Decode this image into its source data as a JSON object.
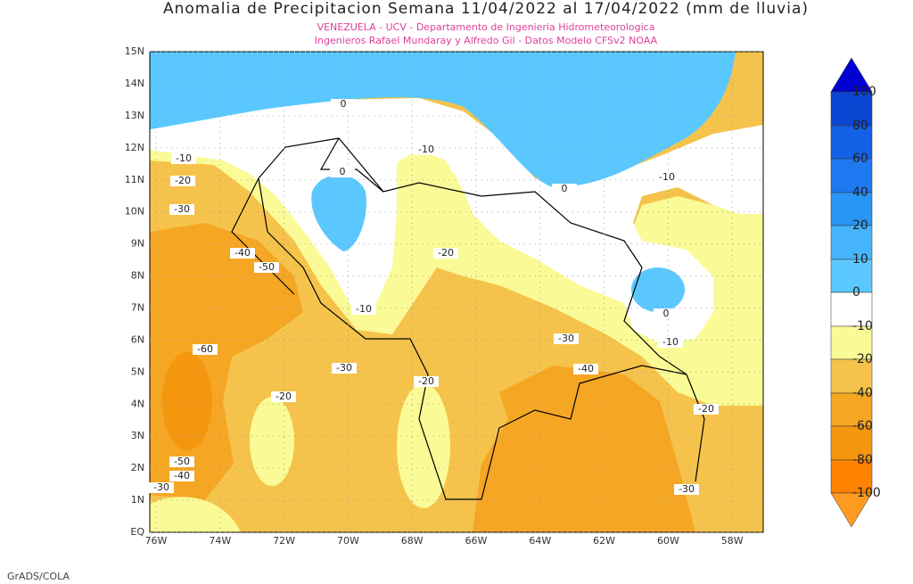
{
  "header": {
    "title": "Anomalia de Precipitacion Semana 11/04/2022 al 17/04/2022 (mm de lluvia)",
    "subtitle_lines": [
      "VENEZUELA - UCV - Departamento de Ingenieria Hidrometeorologica",
      "Ingenieros Rafael Mundaray y Alfredo Gil - Datos Modelo CFSv2 NOAA"
    ]
  },
  "map": {
    "lat_labels": [
      "EQ",
      "1N",
      "2N",
      "3N",
      "4N",
      "5N",
      "6N",
      "7N",
      "8N",
      "9N",
      "10N",
      "11N",
      "12N",
      "13N",
      "14N",
      "15N"
    ],
    "lon_labels": [
      "76W",
      "74W",
      "72W",
      "70W",
      "68W",
      "66W",
      "64W",
      "62W",
      "60W",
      "58W"
    ],
    "contour_labels": [
      "0",
      "-10",
      "-20",
      "-30",
      "-10",
      "0",
      "0",
      "-10",
      "-40",
      "-50",
      "-20",
      "-10",
      "0",
      "-10",
      "-60",
      "-30",
      "-30",
      "-40",
      "-20",
      "-20",
      "-20",
      "-50",
      "-40",
      "-30",
      "-30"
    ]
  },
  "colorbar": {
    "labels": [
      "100",
      "80",
      "60",
      "40",
      "20",
      "10",
      "0",
      "-10",
      "-20",
      "-40",
      "-60",
      "-80",
      "-100"
    ],
    "colors": [
      "#0000d2",
      "#0a46d2",
      "#1460e6",
      "#1e78f0",
      "#2896f5",
      "#46b4fa",
      "#5ac8ff",
      "#ffffff",
      "#fafa96",
      "#f5c34b",
      "#f5a623",
      "#f5960f",
      "#ff8200",
      "#ff9a20"
    ]
  },
  "footer": {
    "credit": "GrADS/COLA"
  }
}
